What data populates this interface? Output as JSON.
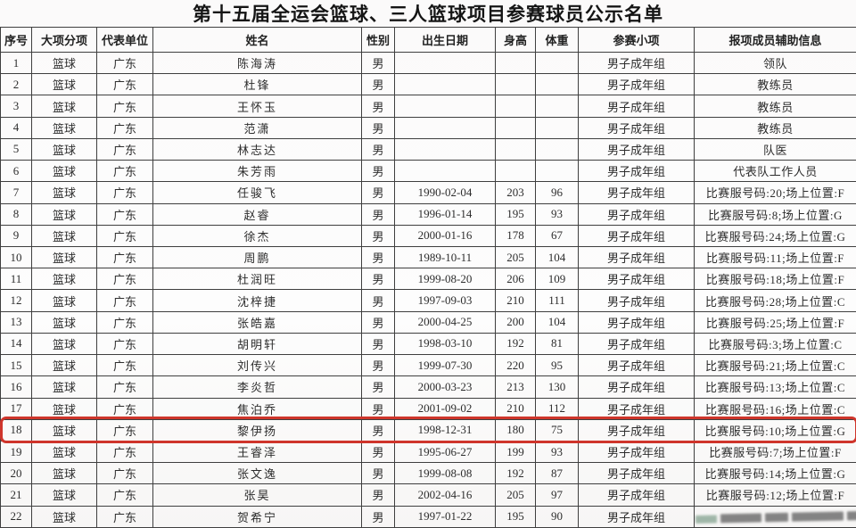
{
  "title": "第十五届全运会篮球、三人篮球项目参赛球员公示名单",
  "table": {
    "columns": [
      "序号",
      "大项分项",
      "代表单位",
      "姓名",
      "性别",
      "出生日期",
      "身高",
      "体重",
      "参赛小项",
      "报项成员辅助信息"
    ],
    "highlight_color": "#cf352b",
    "highlighted_row_no": "18",
    "obscured_aux_row_no": "22",
    "rows": [
      {
        "no": "1",
        "sport": "篮球",
        "unit": "广东",
        "name": "陈海涛",
        "gender": "男",
        "birth": "",
        "height": "",
        "weight": "",
        "group": "男子成年组",
        "aux": "领队"
      },
      {
        "no": "2",
        "sport": "篮球",
        "unit": "广东",
        "name": "杜锋",
        "gender": "男",
        "birth": "",
        "height": "",
        "weight": "",
        "group": "男子成年组",
        "aux": "教练员"
      },
      {
        "no": "3",
        "sport": "篮球",
        "unit": "广东",
        "name": "王怀玉",
        "gender": "男",
        "birth": "",
        "height": "",
        "weight": "",
        "group": "男子成年组",
        "aux": "教练员"
      },
      {
        "no": "4",
        "sport": "篮球",
        "unit": "广东",
        "name": "范潇",
        "gender": "男",
        "birth": "",
        "height": "",
        "weight": "",
        "group": "男子成年组",
        "aux": "教练员"
      },
      {
        "no": "5",
        "sport": "篮球",
        "unit": "广东",
        "name": "林志达",
        "gender": "男",
        "birth": "",
        "height": "",
        "weight": "",
        "group": "男子成年组",
        "aux": "队医"
      },
      {
        "no": "6",
        "sport": "篮球",
        "unit": "广东",
        "name": "朱芳雨",
        "gender": "男",
        "birth": "",
        "height": "",
        "weight": "",
        "group": "男子成年组",
        "aux": "代表队工作人员"
      },
      {
        "no": "7",
        "sport": "篮球",
        "unit": "广东",
        "name": "任骏飞",
        "gender": "男",
        "birth": "1990-02-04",
        "height": "203",
        "weight": "96",
        "group": "男子成年组",
        "aux": "比赛服号码:20;场上位置:F"
      },
      {
        "no": "8",
        "sport": "篮球",
        "unit": "广东",
        "name": "赵睿",
        "gender": "男",
        "birth": "1996-01-14",
        "height": "195",
        "weight": "93",
        "group": "男子成年组",
        "aux": "比赛服号码:8;场上位置:G"
      },
      {
        "no": "9",
        "sport": "篮球",
        "unit": "广东",
        "name": "徐杰",
        "gender": "男",
        "birth": "2000-01-16",
        "height": "178",
        "weight": "67",
        "group": "男子成年组",
        "aux": "比赛服号码:24;场上位置:G"
      },
      {
        "no": "10",
        "sport": "篮球",
        "unit": "广东",
        "name": "周鹏",
        "gender": "男",
        "birth": "1989-10-11",
        "height": "205",
        "weight": "104",
        "group": "男子成年组",
        "aux": "比赛服号码:11;场上位置:F"
      },
      {
        "no": "11",
        "sport": "篮球",
        "unit": "广东",
        "name": "杜润旺",
        "gender": "男",
        "birth": "1999-08-20",
        "height": "206",
        "weight": "109",
        "group": "男子成年组",
        "aux": "比赛服号码:18;场上位置:F"
      },
      {
        "no": "12",
        "sport": "篮球",
        "unit": "广东",
        "name": "沈梓捷",
        "gender": "男",
        "birth": "1997-09-03",
        "height": "210",
        "weight": "111",
        "group": "男子成年组",
        "aux": "比赛服号码:28;场上位置:C"
      },
      {
        "no": "13",
        "sport": "篮球",
        "unit": "广东",
        "name": "张皓嘉",
        "gender": "男",
        "birth": "2000-04-25",
        "height": "200",
        "weight": "104",
        "group": "男子成年组",
        "aux": "比赛服号码:25;场上位置:F"
      },
      {
        "no": "14",
        "sport": "篮球",
        "unit": "广东",
        "name": "胡明轩",
        "gender": "男",
        "birth": "1998-03-10",
        "height": "192",
        "weight": "81",
        "group": "男子成年组",
        "aux": "比赛服号码:3;场上位置:C"
      },
      {
        "no": "15",
        "sport": "篮球",
        "unit": "广东",
        "name": "刘传兴",
        "gender": "男",
        "birth": "1999-07-30",
        "height": "220",
        "weight": "95",
        "group": "男子成年组",
        "aux": "比赛服号码:21;场上位置:C"
      },
      {
        "no": "16",
        "sport": "篮球",
        "unit": "广东",
        "name": "李炎哲",
        "gender": "男",
        "birth": "2000-03-23",
        "height": "213",
        "weight": "130",
        "group": "男子成年组",
        "aux": "比赛服号码:13;场上位置:C"
      },
      {
        "no": "17",
        "sport": "篮球",
        "unit": "广东",
        "name": "焦泊乔",
        "gender": "男",
        "birth": "2001-09-02",
        "height": "210",
        "weight": "112",
        "group": "男子成年组",
        "aux": "比赛服号码:16;场上位置:C"
      },
      {
        "no": "18",
        "sport": "篮球",
        "unit": "广东",
        "name": "黎伊扬",
        "gender": "男",
        "birth": "1998-12-31",
        "height": "180",
        "weight": "75",
        "group": "男子成年组",
        "aux": "比赛服号码:10;场上位置:G"
      },
      {
        "no": "19",
        "sport": "篮球",
        "unit": "广东",
        "name": "王睿泽",
        "gender": "男",
        "birth": "1995-06-27",
        "height": "199",
        "weight": "93",
        "group": "男子成年组",
        "aux": "比赛服号码:7;场上位置:F"
      },
      {
        "no": "20",
        "sport": "篮球",
        "unit": "广东",
        "name": "张文逸",
        "gender": "男",
        "birth": "1999-08-08",
        "height": "192",
        "weight": "87",
        "group": "男子成年组",
        "aux": "比赛服号码:14;场上位置:G"
      },
      {
        "no": "21",
        "sport": "篮球",
        "unit": "广东",
        "name": "张昊",
        "gender": "男",
        "birth": "2002-04-16",
        "height": "205",
        "weight": "97",
        "group": "男子成年组",
        "aux": "比赛服号码:12;场上位置:F"
      },
      {
        "no": "22",
        "sport": "篮球",
        "unit": "广东",
        "name": "贺希宁",
        "gender": "男",
        "birth": "1997-01-22",
        "height": "195",
        "weight": "90",
        "group": "男子成年组",
        "aux": ""
      }
    ]
  }
}
